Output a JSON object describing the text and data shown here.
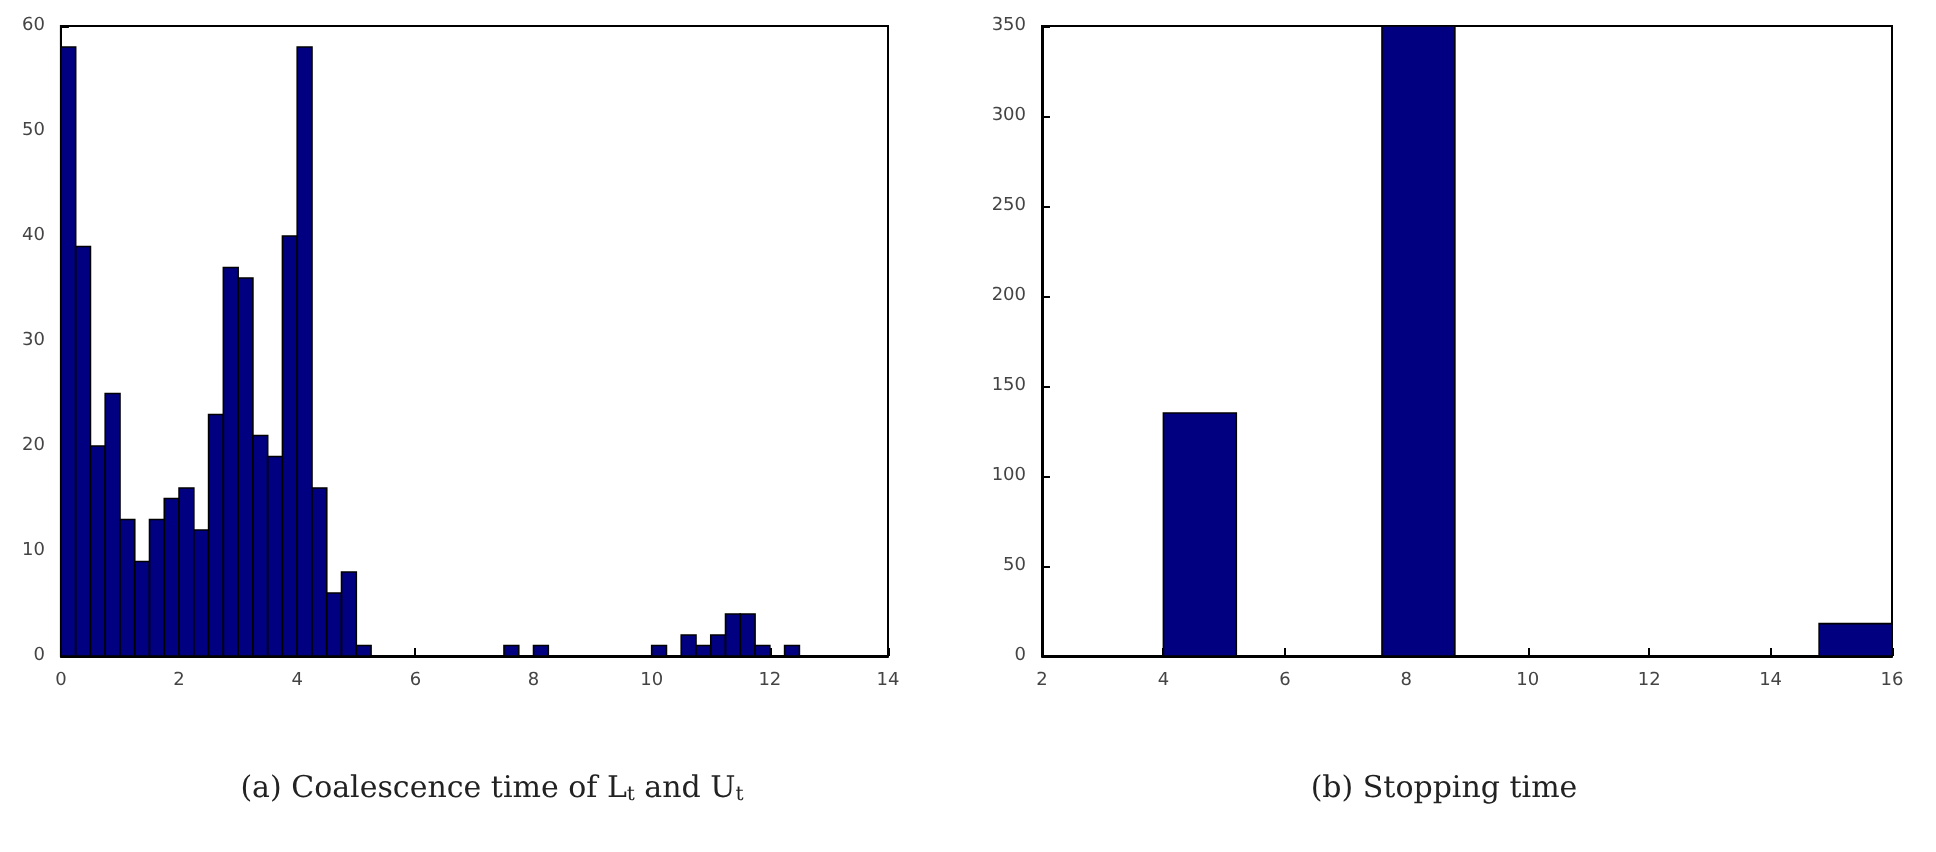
{
  "chart_data": [
    {
      "type": "histogram",
      "title": "(a) Coalescence time of L$_{t}$ and U$_{t}$",
      "color": "#000080",
      "bins": [
        0,
        0.25,
        0.5,
        0.75,
        1,
        1.25,
        1.5,
        1.75,
        2,
        2.25,
        2.5,
        2.75,
        3,
        3.25,
        3.5,
        3.75,
        4,
        4.25,
        4.5,
        4.75,
        5,
        5.25,
        5.5,
        5.75,
        6,
        6.25,
        6.5,
        6.75,
        7,
        7.25,
        7.5,
        7.75,
        8,
        8.25,
        8.5,
        8.75,
        9,
        9.25,
        9.5,
        9.75,
        10,
        10.25,
        10.5,
        10.75,
        11,
        11.25,
        11.5,
        11.75,
        12,
        12.25,
        12.5
      ],
      "values": [
        58,
        39,
        20,
        25,
        13,
        9,
        13,
        15,
        16,
        12,
        23,
        37,
        36,
        21,
        19,
        40,
        58,
        16,
        6,
        8,
        1,
        0,
        0,
        0,
        0,
        0,
        0,
        0,
        0,
        0,
        1,
        0,
        1,
        0,
        0,
        0,
        0,
        0,
        0,
        0,
        1,
        0,
        2,
        1,
        2,
        4,
        4,
        1,
        0,
        1
      ],
      "xlim": [
        0,
        14
      ],
      "xticks": [
        0,
        2,
        4,
        6,
        8,
        10,
        12,
        14
      ],
      "ylim": [
        0,
        60
      ],
      "yticks": [
        0,
        10,
        20,
        30,
        40,
        50,
        60
      ],
      "grid": false
    },
    {
      "type": "histogram",
      "title": "(b) Stopping time",
      "color": "#000080",
      "bins": [
        4,
        5.2,
        6.4,
        7.6,
        8.8,
        10,
        11.2,
        12.4,
        13.6,
        14.8,
        16
      ],
      "values": [
        135,
        0,
        0,
        350,
        0,
        0,
        0,
        0,
        0,
        18
      ],
      "xlim": [
        2,
        16
      ],
      "xticks": [
        2,
        4,
        6,
        8,
        10,
        12,
        14,
        16
      ],
      "ylim": [
        0,
        350
      ],
      "yticks": [
        0,
        50,
        100,
        150,
        200,
        250,
        300,
        350
      ],
      "grid": false
    }
  ]
}
